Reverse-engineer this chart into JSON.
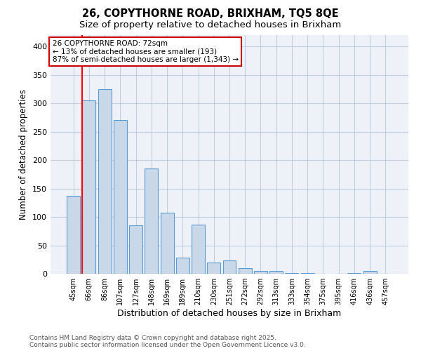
{
  "title1": "26, COPYTHORNE ROAD, BRIXHAM, TQ5 8QE",
  "title2": "Size of property relative to detached houses in Brixham",
  "xlabel": "Distribution of detached houses by size in Brixham",
  "ylabel": "Number of detached properties",
  "bin_labels": [
    "45sqm",
    "66sqm",
    "86sqm",
    "107sqm",
    "127sqm",
    "148sqm",
    "169sqm",
    "189sqm",
    "210sqm",
    "230sqm",
    "251sqm",
    "272sqm",
    "292sqm",
    "313sqm",
    "333sqm",
    "354sqm",
    "375sqm",
    "395sqm",
    "416sqm",
    "436sqm",
    "457sqm"
  ],
  "bar_heights": [
    137,
    305,
    325,
    270,
    85,
    185,
    107,
    28,
    87,
    20,
    23,
    10,
    5,
    5,
    1,
    1,
    0,
    0,
    1,
    5,
    0
  ],
  "bar_color": "#c8d8e8",
  "bar_edge_color": "#5b9bd5",
  "annotation_text": "26 COPYTHORNE ROAD: 72sqm\n← 13% of detached houses are smaller (193)\n87% of semi-detached houses are larger (1,343) →",
  "annotation_box_color": "#cc0000",
  "ylim": [
    0,
    420
  ],
  "yticks": [
    0,
    50,
    100,
    150,
    200,
    250,
    300,
    350,
    400
  ],
  "footer": "Contains HM Land Registry data © Crown copyright and database right 2025.\nContains public sector information licensed under the Open Government Licence v3.0.",
  "grid_color": "#c0cfe0",
  "bg_color": "#eef2f8",
  "property_line_x": 0.57
}
